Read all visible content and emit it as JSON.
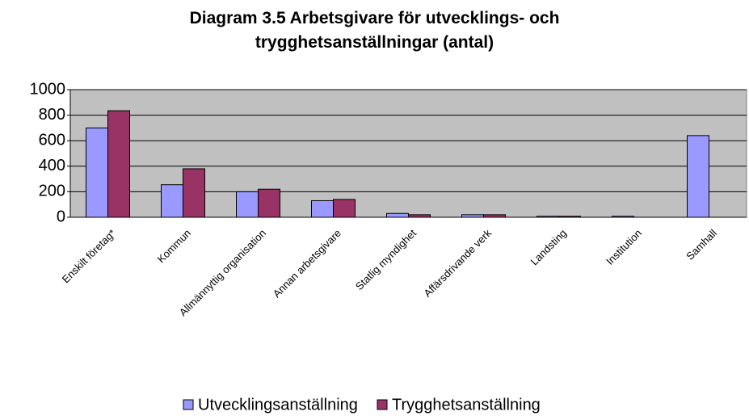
{
  "chart_data": {
    "type": "bar",
    "title": "Diagram 3.5 Arbetsgivare för utvecklings- och trygghetsanställningar (antal)",
    "categories": [
      "Enskilt företag*",
      "Kommun",
      "Allmännyttig organisation",
      "Annan arbetsgivare",
      "Statlig myndighet",
      "Affärsdrivande verk",
      "Landsting",
      "Institution",
      "Samhall"
    ],
    "series": [
      {
        "name": "Utvecklingsanställning",
        "color": "#9999ff",
        "values": [
          700,
          255,
          200,
          130,
          30,
          20,
          8,
          8,
          640
        ]
      },
      {
        "name": "Trygghetsanställning",
        "color": "#993366",
        "values": [
          835,
          380,
          220,
          140,
          20,
          20,
          8,
          0,
          0
        ]
      }
    ],
    "ylim": [
      0,
      1000
    ],
    "yticks": [
      0,
      200,
      400,
      600,
      800,
      1000
    ],
    "grid": true,
    "legend": "bottom"
  }
}
